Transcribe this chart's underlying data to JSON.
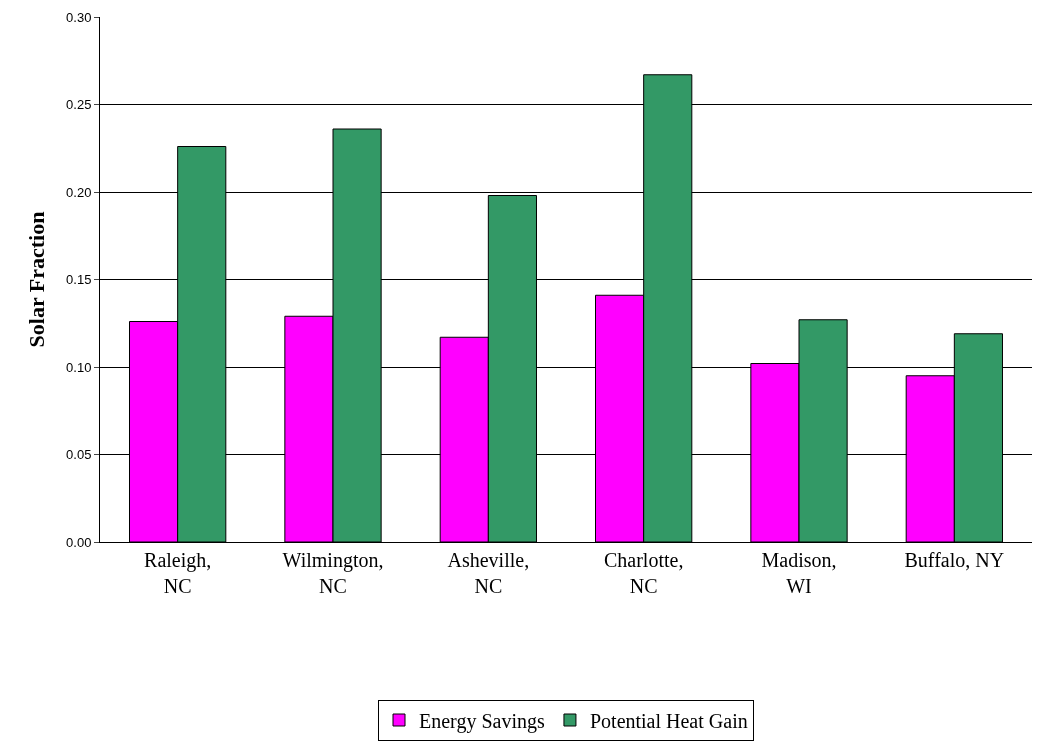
{
  "chart_data": {
    "type": "bar",
    "ylabel": "Solar Fraction",
    "categories": [
      "Raleigh,\nNC",
      "Wilmington,\nNC",
      "Asheville,\nNC",
      "Charlotte,\nNC",
      "Madison,\nWI",
      "Buffalo, NY"
    ],
    "series": [
      {
        "name": "Energy Savings",
        "color": "#ff00ff",
        "values": [
          0.126,
          0.129,
          0.117,
          0.141,
          0.102,
          0.095
        ]
      },
      {
        "name": "Potential Heat Gain",
        "color": "#339966",
        "values": [
          0.226,
          0.236,
          0.198,
          0.267,
          0.127,
          0.119
        ]
      }
    ],
    "ylim": [
      0,
      0.3
    ],
    "yticks": [
      {
        "value": 0,
        "label": "0.00"
      },
      {
        "value": 0.05,
        "label": "0.05"
      },
      {
        "value": 0.1,
        "label": "0.10"
      },
      {
        "value": 0.15,
        "label": "0.15"
      },
      {
        "value": 0.2,
        "label": "0.20"
      },
      {
        "value": 0.25,
        "label": "0.25"
      },
      {
        "value": 0.3,
        "label": "0.30"
      }
    ],
    "grid": "y",
    "legend": "bottom"
  }
}
